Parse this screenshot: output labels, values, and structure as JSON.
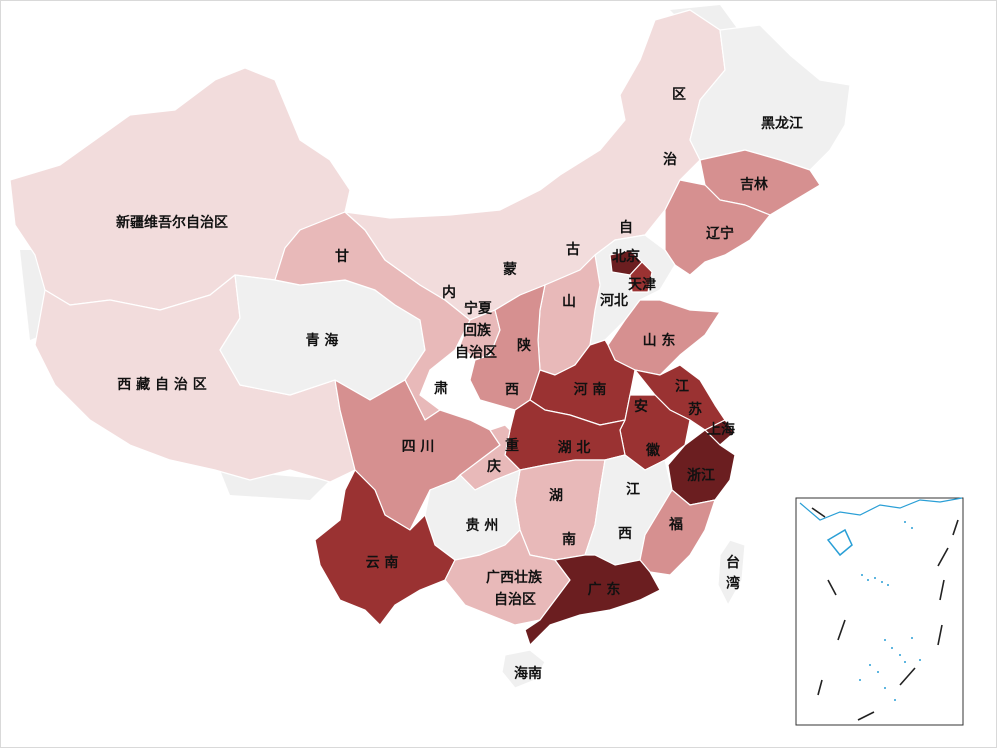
{
  "map": {
    "palette": {
      "none": "#f0f0f0",
      "l1": "#f2dcdc",
      "l2": "#e8b9b9",
      "l3": "#d69090",
      "l4": "#9a3232",
      "l5": "#6b1e20"
    },
    "regions": [
      {
        "id": "xinjiang",
        "label": "新疆维吾尔自治区",
        "level": "l1"
      },
      {
        "id": "xizang",
        "label": "西 藏 自 治 区",
        "level": "l1"
      },
      {
        "id": "qinghai",
        "label": "青   海",
        "level": "none"
      },
      {
        "id": "gansu-top",
        "label": "甘",
        "level": "l2"
      },
      {
        "id": "gansu-bottom",
        "label": "肃",
        "level": "l2"
      },
      {
        "id": "neimenggu-1",
        "label": "内",
        "level": "l1"
      },
      {
        "id": "neimenggu-2",
        "label": "蒙",
        "level": "l1"
      },
      {
        "id": "neimenggu-3",
        "label": "古",
        "level": "l1"
      },
      {
        "id": "neimenggu-4",
        "label": "自",
        "level": "l1"
      },
      {
        "id": "neimenggu-5",
        "label": "治",
        "level": "l1"
      },
      {
        "id": "neimenggu-6",
        "label": "区",
        "level": "l1"
      },
      {
        "id": "heilongjiang",
        "label": "黑龙江",
        "level": "none"
      },
      {
        "id": "jilin",
        "label": "吉林",
        "level": "l3"
      },
      {
        "id": "liaoning",
        "label": "辽宁",
        "level": "l3"
      },
      {
        "id": "beijing",
        "label": "北京",
        "level": "l5"
      },
      {
        "id": "tianjin",
        "label": "天津",
        "level": "l4"
      },
      {
        "id": "hebei",
        "label": "河北",
        "level": "none"
      },
      {
        "id": "shanxi",
        "label": "山",
        "level": "l2"
      },
      {
        "id": "ningxia-1",
        "label": "宁夏",
        "level": "l2"
      },
      {
        "id": "ningxia-2",
        "label": "回族",
        "level": "l2"
      },
      {
        "id": "ningxia-3",
        "label": "自治区",
        "level": "l2"
      },
      {
        "id": "shaanxi-1",
        "label": "陕",
        "level": "l3"
      },
      {
        "id": "shaanxi-2",
        "label": "西",
        "level": "l3"
      },
      {
        "id": "shandong",
        "label": "山 东",
        "level": "l3"
      },
      {
        "id": "henan",
        "label": "河  南",
        "level": "l4"
      },
      {
        "id": "jiangsu-1",
        "label": "江",
        "level": "l4"
      },
      {
        "id": "jiangsu-2",
        "label": "苏",
        "level": "l4"
      },
      {
        "id": "anhui-1",
        "label": "安",
        "level": "l4"
      },
      {
        "id": "anhui-2",
        "label": "徽",
        "level": "l4"
      },
      {
        "id": "shanghai",
        "label": "上海",
        "level": "l5"
      },
      {
        "id": "hubei",
        "label": "湖 北",
        "level": "l4"
      },
      {
        "id": "sichuan",
        "label": "四   川",
        "level": "l3"
      },
      {
        "id": "chongqing-1",
        "label": "重",
        "level": "l2"
      },
      {
        "id": "chongqing-2",
        "label": "庆",
        "level": "l2"
      },
      {
        "id": "zhejiang",
        "label": "浙江",
        "level": "l5"
      },
      {
        "id": "hunan-1",
        "label": "湖",
        "level": "l2"
      },
      {
        "id": "hunan-2",
        "label": "南",
        "level": "l2"
      },
      {
        "id": "jiangxi-1",
        "label": "江",
        "level": "none"
      },
      {
        "id": "jiangxi-2",
        "label": "西",
        "level": "none"
      },
      {
        "id": "fujian",
        "label": "福",
        "level": "l3"
      },
      {
        "id": "guizhou",
        "label": "贵 州",
        "level": "none"
      },
      {
        "id": "yunnan",
        "label": "云  南",
        "level": "l4"
      },
      {
        "id": "guangxi-1",
        "label": "广西壮族",
        "level": "l2"
      },
      {
        "id": "guangxi-2",
        "label": "自治区",
        "level": "l2"
      },
      {
        "id": "guangdong",
        "label": "广 东",
        "level": "l5"
      },
      {
        "id": "taiwan-1",
        "label": "台",
        "level": "none"
      },
      {
        "id": "taiwan-2",
        "label": "湾",
        "level": "none"
      },
      {
        "id": "hainan",
        "label": "海南",
        "level": "none"
      }
    ]
  }
}
